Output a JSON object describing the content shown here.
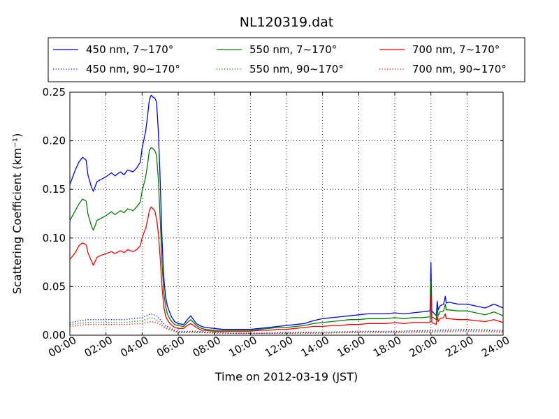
{
  "chart_data": {
    "type": "line",
    "title": "NL120319.dat",
    "xlabel": "Time on 2012-03-19 (JST)",
    "ylabel": "Scattering Coefficient (km⁻¹)",
    "x_unit": "hour",
    "xlim": [
      0,
      24
    ],
    "ylim": [
      0,
      0.25
    ],
    "xticks": [
      "00:00",
      "02:00",
      "04:00",
      "06:00",
      "08:00",
      "10:00",
      "12:00",
      "14:00",
      "16:00",
      "18:00",
      "20:00",
      "22:00",
      "24:00"
    ],
    "yticks": [
      "0.00",
      "0.05",
      "0.10",
      "0.15",
      "0.20",
      "0.25"
    ],
    "grid": true,
    "legend_position": "top, above plot (3 columns)",
    "series": [
      {
        "name": "450 nm, 7∼170°",
        "color": "#0000ff",
        "style": "solid",
        "x": [
          0,
          0.3,
          0.5,
          0.7,
          0.9,
          1.0,
          1.2,
          1.3,
          1.5,
          1.7,
          2.0,
          2.3,
          2.5,
          2.8,
          3.0,
          3.2,
          3.5,
          3.7,
          3.9,
          4.0,
          4.2,
          4.3,
          4.4,
          4.5,
          4.6,
          4.7,
          4.8,
          4.9,
          5.0,
          5.1,
          5.2,
          5.3,
          5.4,
          5.5,
          5.6,
          5.8,
          6.0,
          6.3,
          6.5,
          6.7,
          7.0,
          7.3,
          7.5,
          8.0,
          8.5,
          9.0,
          9.5,
          10.0,
          10.5,
          11.0,
          11.5,
          12.0,
          12.5,
          13.0,
          13.5,
          14.0,
          14.5,
          15.0,
          15.5,
          16.0,
          16.5,
          17.0,
          17.5,
          18.0,
          18.5,
          19.0,
          19.5,
          19.95,
          20.0,
          20.05,
          20.3,
          20.35,
          20.4,
          20.5,
          20.7,
          20.8,
          20.85,
          21.0,
          21.5,
          22.0,
          22.5,
          23.0,
          23.5,
          24.0
        ],
        "y": [
          0.155,
          0.17,
          0.178,
          0.183,
          0.18,
          0.165,
          0.152,
          0.148,
          0.158,
          0.16,
          0.163,
          0.167,
          0.164,
          0.168,
          0.165,
          0.17,
          0.168,
          0.172,
          0.178,
          0.192,
          0.21,
          0.225,
          0.242,
          0.247,
          0.245,
          0.244,
          0.24,
          0.21,
          0.16,
          0.1,
          0.06,
          0.04,
          0.03,
          0.025,
          0.02,
          0.014,
          0.012,
          0.011,
          0.016,
          0.02,
          0.012,
          0.009,
          0.008,
          0.007,
          0.006,
          0.006,
          0.006,
          0.006,
          0.007,
          0.008,
          0.009,
          0.01,
          0.011,
          0.012,
          0.015,
          0.017,
          0.018,
          0.019,
          0.02,
          0.021,
          0.022,
          0.022,
          0.022,
          0.023,
          0.022,
          0.023,
          0.024,
          0.025,
          0.075,
          0.025,
          0.02,
          0.035,
          0.026,
          0.03,
          0.032,
          0.04,
          0.033,
          0.034,
          0.032,
          0.032,
          0.03,
          0.028,
          0.032,
          0.028
        ]
      },
      {
        "name": "550 nm, 7∼170°",
        "color": "#008000",
        "style": "solid",
        "x": [
          0,
          0.3,
          0.5,
          0.7,
          0.9,
          1.0,
          1.2,
          1.3,
          1.5,
          1.7,
          2.0,
          2.3,
          2.5,
          2.8,
          3.0,
          3.2,
          3.5,
          3.7,
          3.9,
          4.0,
          4.2,
          4.3,
          4.4,
          4.5,
          4.6,
          4.7,
          4.8,
          4.9,
          5.0,
          5.1,
          5.2,
          5.3,
          5.4,
          5.5,
          5.6,
          5.8,
          6.0,
          6.3,
          6.5,
          6.7,
          7.0,
          7.3,
          7.5,
          8.0,
          8.5,
          9.0,
          9.5,
          10.0,
          10.5,
          11.0,
          11.5,
          12.0,
          12.5,
          13.0,
          13.5,
          14.0,
          14.5,
          15.0,
          15.5,
          16.0,
          16.5,
          17.0,
          17.5,
          18.0,
          18.5,
          19.0,
          19.5,
          19.95,
          20.0,
          20.05,
          20.3,
          20.35,
          20.4,
          20.5,
          20.7,
          20.8,
          20.85,
          21.0,
          21.5,
          22.0,
          22.5,
          23.0,
          23.5,
          24.0
        ],
        "y": [
          0.118,
          0.128,
          0.135,
          0.14,
          0.138,
          0.125,
          0.112,
          0.108,
          0.118,
          0.12,
          0.123,
          0.127,
          0.124,
          0.128,
          0.126,
          0.13,
          0.128,
          0.132,
          0.137,
          0.148,
          0.163,
          0.175,
          0.19,
          0.193,
          0.192,
          0.19,
          0.185,
          0.16,
          0.12,
          0.075,
          0.045,
          0.03,
          0.022,
          0.018,
          0.015,
          0.011,
          0.01,
          0.009,
          0.013,
          0.016,
          0.01,
          0.007,
          0.006,
          0.005,
          0.005,
          0.005,
          0.005,
          0.005,
          0.006,
          0.007,
          0.008,
          0.008,
          0.009,
          0.01,
          0.012,
          0.013,
          0.014,
          0.015,
          0.016,
          0.016,
          0.017,
          0.017,
          0.017,
          0.018,
          0.017,
          0.018,
          0.018,
          0.019,
          0.055,
          0.019,
          0.016,
          0.028,
          0.02,
          0.024,
          0.025,
          0.032,
          0.026,
          0.026,
          0.025,
          0.025,
          0.023,
          0.021,
          0.024,
          0.02
        ]
      },
      {
        "name": "700 nm, 7∼170°",
        "color": "#ff0000",
        "style": "solid",
        "x": [
          0,
          0.3,
          0.5,
          0.7,
          0.9,
          1.0,
          1.2,
          1.3,
          1.5,
          1.7,
          2.0,
          2.3,
          2.5,
          2.8,
          3.0,
          3.2,
          3.5,
          3.7,
          3.9,
          4.0,
          4.2,
          4.3,
          4.4,
          4.5,
          4.6,
          4.7,
          4.8,
          4.9,
          5.0,
          5.1,
          5.2,
          5.3,
          5.4,
          5.5,
          5.6,
          5.8,
          6.0,
          6.3,
          6.5,
          6.7,
          7.0,
          7.3,
          7.5,
          8.0,
          8.5,
          9.0,
          9.5,
          10.0,
          10.5,
          11.0,
          11.5,
          12.0,
          12.5,
          13.0,
          13.5,
          14.0,
          14.5,
          15.0,
          15.5,
          16.0,
          16.5,
          17.0,
          17.5,
          18.0,
          18.5,
          19.0,
          19.5,
          19.95,
          20.0,
          20.05,
          20.3,
          20.35,
          20.4,
          20.5,
          20.7,
          20.8,
          20.85,
          21.0,
          21.5,
          22.0,
          22.5,
          23.0,
          23.5,
          24.0
        ],
        "y": [
          0.078,
          0.085,
          0.092,
          0.095,
          0.093,
          0.085,
          0.076,
          0.072,
          0.08,
          0.082,
          0.084,
          0.086,
          0.084,
          0.087,
          0.085,
          0.088,
          0.086,
          0.088,
          0.092,
          0.1,
          0.11,
          0.118,
          0.128,
          0.132,
          0.13,
          0.128,
          0.12,
          0.105,
          0.08,
          0.05,
          0.03,
          0.02,
          0.016,
          0.013,
          0.011,
          0.008,
          0.007,
          0.007,
          0.01,
          0.012,
          0.008,
          0.005,
          0.005,
          0.004,
          0.004,
          0.004,
          0.004,
          0.004,
          0.005,
          0.005,
          0.006,
          0.006,
          0.007,
          0.008,
          0.009,
          0.009,
          0.01,
          0.01,
          0.011,
          0.011,
          0.012,
          0.012,
          0.012,
          0.013,
          0.012,
          0.013,
          0.013,
          0.013,
          0.04,
          0.013,
          0.011,
          0.02,
          0.014,
          0.017,
          0.018,
          0.022,
          0.017,
          0.017,
          0.016,
          0.016,
          0.015,
          0.014,
          0.016,
          0.013
        ]
      },
      {
        "name": "450 nm, 90∼170°",
        "color": "#0000ff",
        "style": "dotted",
        "x": [
          0,
          1,
          2,
          3,
          4,
          4.5,
          4.8,
          5.0,
          5.3,
          5.6,
          6,
          7,
          8,
          9,
          10,
          11,
          12,
          14,
          16,
          18,
          20,
          22,
          24
        ],
        "y": [
          0.013,
          0.016,
          0.016,
          0.016,
          0.018,
          0.022,
          0.02,
          0.016,
          0.01,
          0.007,
          0.004,
          0.004,
          0.003,
          0.002,
          0.002,
          0.002,
          0.003,
          0.003,
          0.004,
          0.004,
          0.005,
          0.006,
          0.005
        ]
      },
      {
        "name": "550 nm, 90∼170°",
        "color": "#008000",
        "style": "dotted",
        "x": [
          0,
          1,
          2,
          3,
          4,
          4.5,
          4.8,
          5.0,
          5.3,
          5.6,
          6,
          7,
          8,
          9,
          10,
          11,
          12,
          14,
          16,
          18,
          20,
          22,
          24
        ],
        "y": [
          0.011,
          0.013,
          0.013,
          0.013,
          0.015,
          0.018,
          0.016,
          0.013,
          0.008,
          0.006,
          0.003,
          0.003,
          0.003,
          0.002,
          0.002,
          0.002,
          0.002,
          0.003,
          0.003,
          0.003,
          0.004,
          0.005,
          0.004
        ]
      },
      {
        "name": "700 nm, 90∼170°",
        "color": "#ff0000",
        "style": "dotted",
        "x": [
          0,
          1,
          2,
          3,
          4,
          4.5,
          4.8,
          5.0,
          5.3,
          5.6,
          6,
          7,
          8,
          9,
          10,
          11,
          12,
          14,
          16,
          18,
          20,
          22,
          24
        ],
        "y": [
          0.009,
          0.011,
          0.011,
          0.011,
          0.012,
          0.014,
          0.013,
          0.011,
          0.007,
          0.005,
          0.003,
          0.003,
          0.002,
          0.002,
          0.002,
          0.002,
          0.002,
          0.002,
          0.003,
          0.003,
          0.003,
          0.004,
          0.003
        ]
      }
    ]
  }
}
